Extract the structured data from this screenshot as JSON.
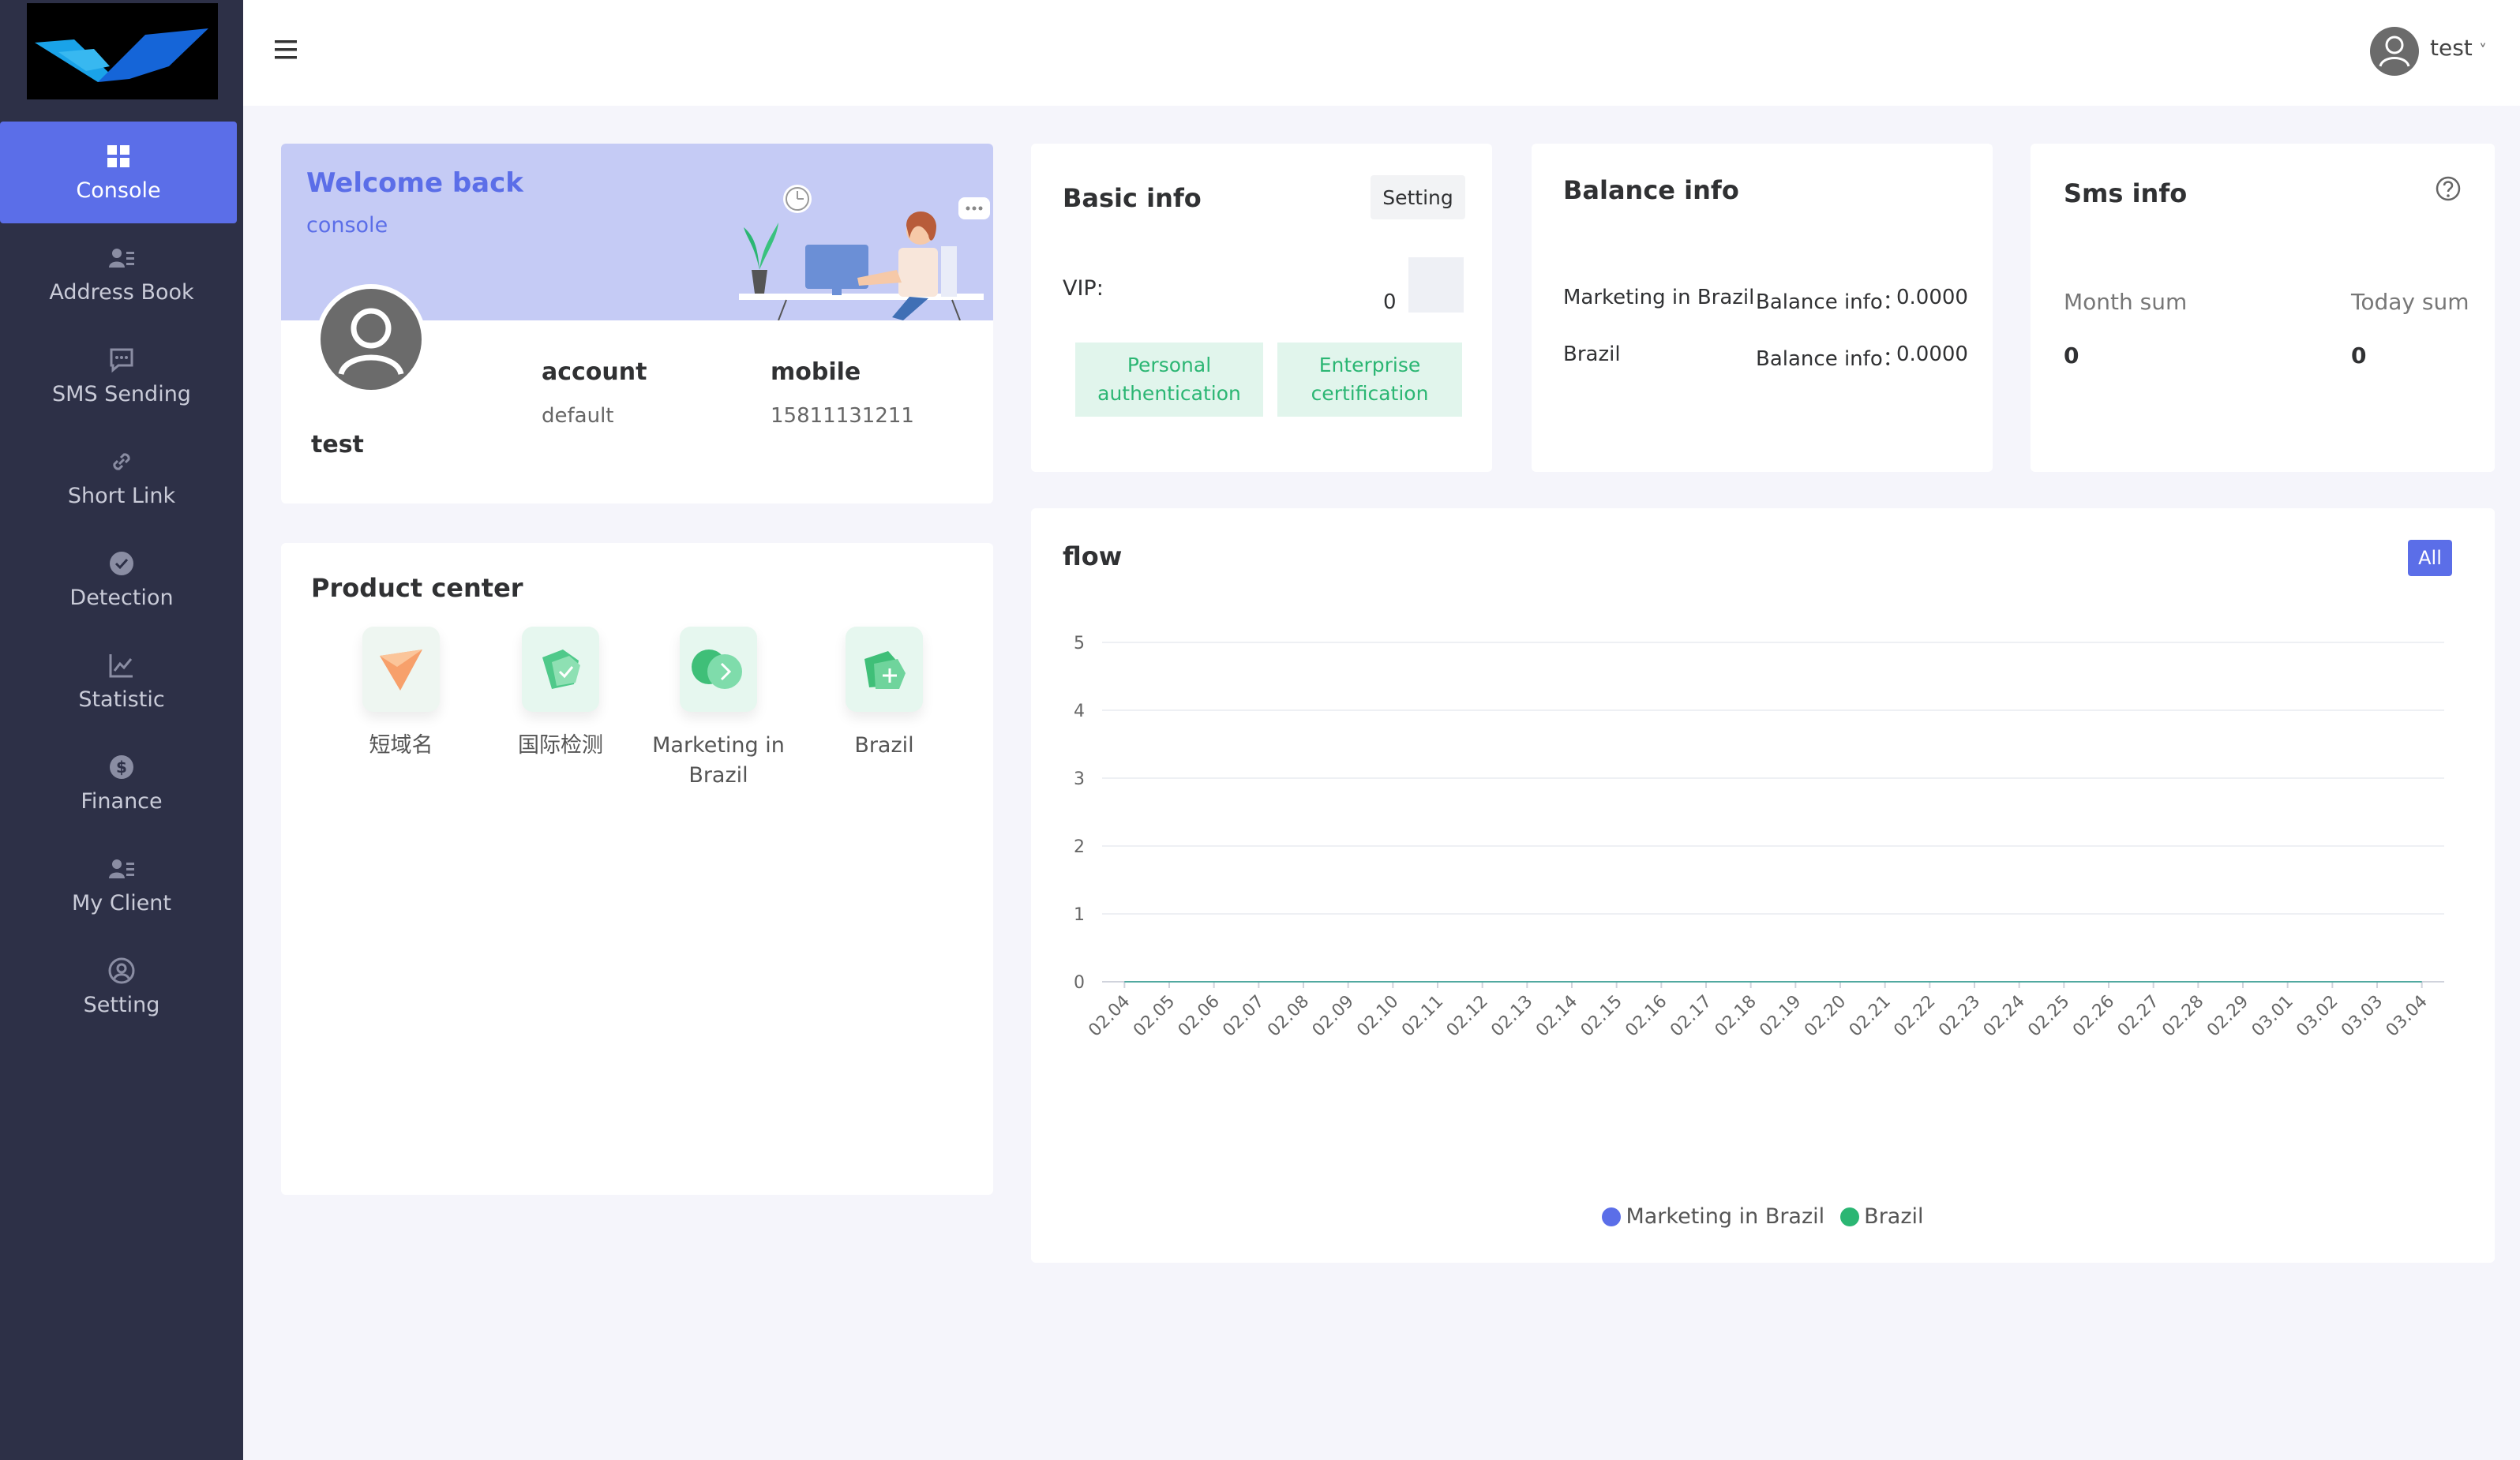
{
  "sidebar": {
    "items": [
      {
        "label": "Console",
        "icon": "grid-icon"
      },
      {
        "label": "Address Book",
        "icon": "contacts-icon"
      },
      {
        "label": "SMS Sending",
        "icon": "message-icon"
      },
      {
        "label": "Short Link",
        "icon": "link-icon"
      },
      {
        "label": "Detection",
        "icon": "check-badge-icon"
      },
      {
        "label": "Statistic",
        "icon": "line-chart-icon"
      },
      {
        "label": "Finance",
        "icon": "dollar-icon"
      },
      {
        "label": "My Client",
        "icon": "contacts-icon"
      },
      {
        "label": "Setting",
        "icon": "user-circle-icon"
      }
    ],
    "active_index": 0
  },
  "header": {
    "username": "test",
    "language_flag": "us-flag-icon"
  },
  "welcome": {
    "title": "Welcome back",
    "subtitle": "console",
    "username": "test",
    "account_label": "account",
    "account_value": "default",
    "mobile_label": "mobile",
    "mobile_value": "15811131211"
  },
  "product_center": {
    "title": "Product center",
    "products": [
      {
        "label": "短域名"
      },
      {
        "label": "国际检测"
      },
      {
        "label": "Marketing in Brazil"
      },
      {
        "label": "Brazil"
      }
    ]
  },
  "basic_info": {
    "title": "Basic info",
    "setting_label": "Setting",
    "vip_label": "VIP:",
    "vip_value": "0",
    "personal_auth": "Personal authentication",
    "enterprise_cert": "Enterprise certification"
  },
  "balance_info": {
    "title": "Balance info",
    "rows": [
      {
        "name": "Marketing in Brazil",
        "label": "Balance info：",
        "value": "0.0000"
      },
      {
        "name": "Brazil",
        "label": "Balance info：",
        "value": "0.0000"
      }
    ]
  },
  "sms_info": {
    "title": "Sms info",
    "month_label": "Month sum",
    "today_label": "Today sum",
    "month_value": "0",
    "today_value": "0"
  },
  "flow": {
    "title": "flow",
    "filter_label": "All"
  },
  "colors": {
    "accent": "#5b6ee8",
    "sidebar_bg": "#2d3047",
    "series1": "#5b6ee8",
    "series2": "#2bb673"
  },
  "chart_data": {
    "type": "line",
    "title": "flow",
    "x": [
      "02.04",
      "02.05",
      "02.06",
      "02.07",
      "02.08",
      "02.09",
      "02.10",
      "02.11",
      "02.12",
      "02.13",
      "02.14",
      "02.15",
      "02.16",
      "02.17",
      "02.18",
      "02.19",
      "02.20",
      "02.21",
      "02.22",
      "02.23",
      "02.24",
      "02.25",
      "02.26",
      "02.27",
      "02.28",
      "02.29",
      "03.01",
      "03.02",
      "03.03",
      "03.04"
    ],
    "ylim": [
      0,
      5
    ],
    "yticks": [
      0,
      1,
      2,
      3,
      4,
      5
    ],
    "grid": true,
    "legend_position": "bottom",
    "series": [
      {
        "name": "Marketing in Brazil",
        "color": "#5b6ee8",
        "values": [
          0,
          0,
          0,
          0,
          0,
          0,
          0,
          0,
          0,
          0,
          0,
          0,
          0,
          0,
          0,
          0,
          0,
          0,
          0,
          0,
          0,
          0,
          0,
          0,
          0,
          0,
          0,
          0,
          0,
          0
        ]
      },
      {
        "name": "Brazil",
        "color": "#2bb673",
        "values": [
          0,
          0,
          0,
          0,
          0,
          0,
          0,
          0,
          0,
          0,
          0,
          0,
          0,
          0,
          0,
          0,
          0,
          0,
          0,
          0,
          0,
          0,
          0,
          0,
          0,
          0,
          0,
          0,
          0,
          0
        ]
      }
    ]
  }
}
